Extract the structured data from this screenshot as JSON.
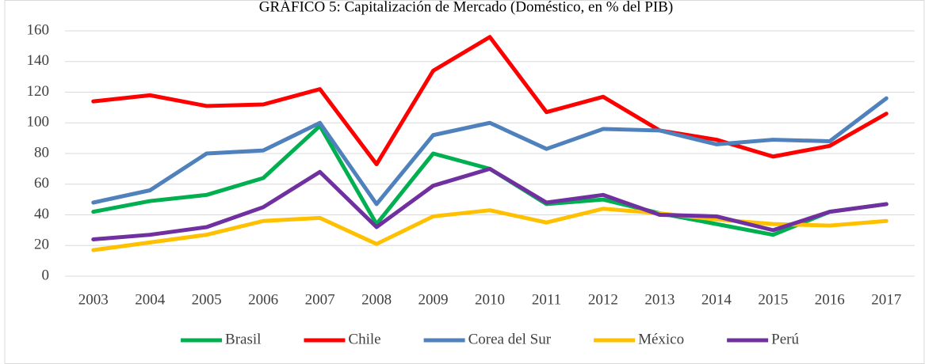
{
  "chart_data": {
    "type": "line",
    "title": "GRÁFICO 5: Capitalización de Mercado (Doméstico, en % del PIB)",
    "categories": [
      "2003",
      "2004",
      "2005",
      "2006",
      "2007",
      "2008",
      "2009",
      "2010",
      "2011",
      "2012",
      "2013",
      "2014",
      "2015",
      "2016",
      "2017"
    ],
    "series": [
      {
        "name": "Brasil",
        "color": "#00b050",
        "values": [
          42,
          49,
          53,
          64,
          98,
          34,
          80,
          70,
          47,
          50,
          41,
          34,
          27,
          42,
          47
        ]
      },
      {
        "name": "Chile",
        "color": "#ff0000",
        "values": [
          114,
          118,
          111,
          112,
          122,
          73,
          134,
          156,
          107,
          117,
          95,
          89,
          78,
          85,
          106
        ]
      },
      {
        "name": "Corea del Sur",
        "color": "#4f81bd",
        "values": [
          48,
          56,
          80,
          82,
          100,
          47,
          92,
          100,
          83,
          96,
          95,
          86,
          89,
          88,
          116
        ]
      },
      {
        "name": "México",
        "color": "#ffc000",
        "values": [
          17,
          22,
          27,
          36,
          38,
          21,
          39,
          43,
          35,
          44,
          41,
          37,
          34,
          33,
          36
        ]
      },
      {
        "name": "Perú",
        "color": "#7030a0",
        "values": [
          24,
          27,
          32,
          45,
          68,
          32,
          59,
          70,
          48,
          53,
          40,
          39,
          30,
          42,
          47
        ]
      }
    ],
    "ylim": [
      0,
      160
    ],
    "yticks": [
      0,
      20,
      40,
      60,
      80,
      100,
      120,
      140,
      160
    ],
    "grid": true,
    "legend": "bottom"
  }
}
